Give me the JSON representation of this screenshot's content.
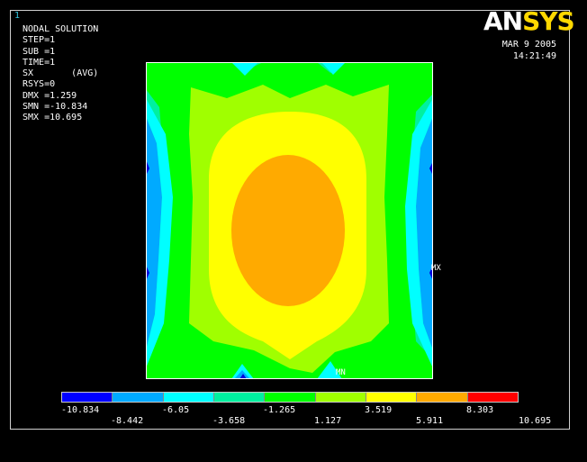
{
  "window_number": "1",
  "info": {
    "lines": [
      "NODAL SOLUTION",
      "",
      "STEP=1",
      "SUB =1",
      "TIME=1",
      "SX       (AVG)",
      "RSYS=0",
      "DMX =1.259",
      "SMN =-10.834",
      "SMX =10.695"
    ]
  },
  "logo": {
    "part1": "AN",
    "part2": "SYS"
  },
  "timestamp": {
    "date": "MAR  9 2005",
    "time": "14:21:49"
  },
  "plot_tags": {
    "max": "MX",
    "min": "MN"
  },
  "legend": {
    "colors": [
      "#0000ff",
      "#00aaff",
      "#00ffff",
      "#00f0a0",
      "#00ff00",
      "#a0ff00",
      "#ffff00",
      "#ffaa00",
      "#ff0000"
    ],
    "top_labels": [
      "-10.834",
      "-6.05",
      "-1.265",
      "3.519",
      "8.303"
    ],
    "bottom_labels": [
      "-8.442",
      "-3.658",
      "1.127",
      "5.911",
      "10.695"
    ]
  },
  "contour_colors": {
    "deep_blue": "#0000dd",
    "light_blue": "#00aaff",
    "cyan": "#00ffff",
    "teal": "#00f0a0",
    "green": "#00ff00",
    "yellow_green": "#a0ff00",
    "yellow": "#ffff00",
    "orange": "#ffaa00"
  }
}
